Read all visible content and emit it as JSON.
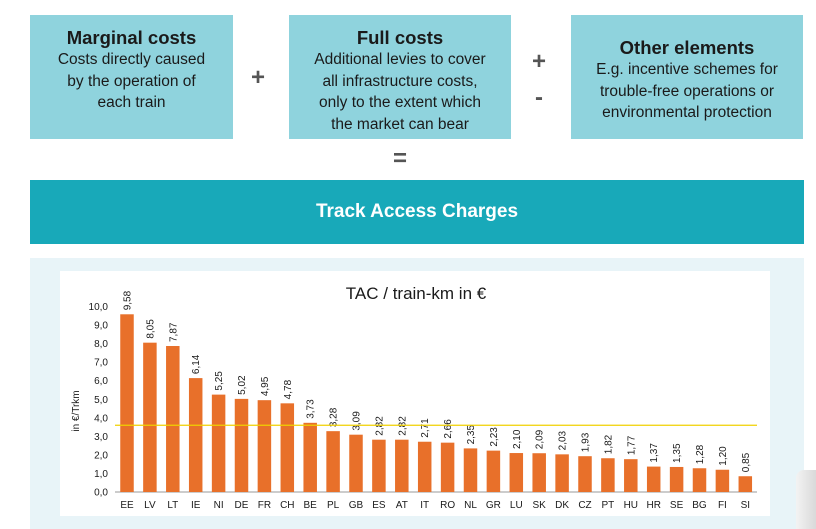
{
  "formula": {
    "marginal": {
      "title": "Marginal costs",
      "lines": [
        "Costs directly caused",
        "by the operation of",
        "each train"
      ]
    },
    "full": {
      "title": "Full costs",
      "lines": [
        "Additional levies to cover",
        "all infrastructure costs,",
        "only to the extent which",
        "the market can bear"
      ]
    },
    "other": {
      "title": "Other elements",
      "lines": [
        "E.g. incentive schemes for",
        "trouble-free operations or",
        "environmental protection"
      ]
    },
    "plus": "+",
    "plus_minus": [
      "+",
      "-"
    ],
    "equals": "=",
    "result": "Track Access Charges"
  },
  "colors": {
    "box": "#8fd3dd",
    "banner": "#18a9b9",
    "bar": "#e8702a",
    "reference_line": "#f0d000"
  },
  "chart_data": {
    "type": "bar",
    "title": "TAC / train-km in €",
    "ylabel": "in €/Trkm",
    "xlabel": "",
    "ylim": [
      0,
      10
    ],
    "yticks": [
      "0,0",
      "1,0",
      "2,0",
      "3,0",
      "4,0",
      "5,0",
      "6,0",
      "7,0",
      "8,0",
      "9,0",
      "10,0"
    ],
    "categories": [
      "EE",
      "LV",
      "LT",
      "IE",
      "NI",
      "DE",
      "FR",
      "CH",
      "BE",
      "PL",
      "GB",
      "ES",
      "AT",
      "IT",
      "RO",
      "NL",
      "GR",
      "LU",
      "SK",
      "DK",
      "CZ",
      "PT",
      "HU",
      "HR",
      "SE",
      "BG",
      "FI",
      "SI"
    ],
    "values": [
      9.58,
      8.05,
      7.87,
      6.14,
      5.25,
      5.02,
      4.95,
      4.78,
      3.73,
      3.28,
      3.09,
      2.82,
      2.82,
      2.71,
      2.66,
      2.35,
      2.23,
      2.1,
      2.09,
      2.03,
      1.93,
      1.82,
      1.77,
      1.37,
      1.35,
      1.28,
      1.2,
      0.85
    ],
    "labels": [
      "9,58",
      "8,05",
      "7,87",
      "6,14",
      "5,25",
      "5,02",
      "4,95",
      "4,78",
      "3,73",
      "3,28",
      "3,09",
      "2,82",
      "2,82",
      "2,71",
      "2,66",
      "2,35",
      "2,23",
      "2,10",
      "2,09",
      "2,03",
      "1,93",
      "1,82",
      "1,77",
      "1,37",
      "1,35",
      "1,28",
      "1,20",
      "0,85"
    ],
    "reference_line": 3.6,
    "grid": false,
    "legend": "none"
  }
}
